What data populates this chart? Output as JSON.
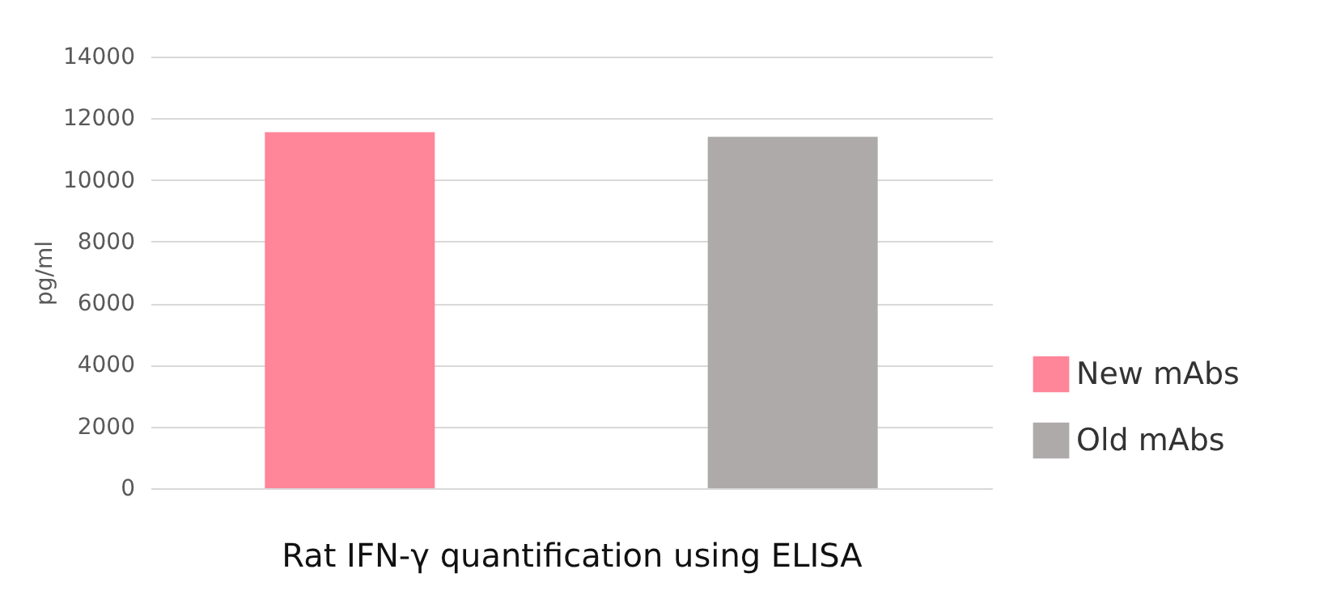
{
  "chart_data": {
    "type": "bar",
    "xlabel": "Rat IFN-γ quantification using ELISA",
    "ylabel": "pg/ml",
    "categories": [
      null
    ],
    "series": [
      {
        "name": "New mAbs",
        "color": "#ff8599",
        "values": [
          11550
        ]
      },
      {
        "name": "Old mAbs",
        "color": "#aeaaaa",
        "values": [
          11400
        ]
      }
    ],
    "ylim": [
      0,
      14000
    ],
    "yticks": [
      0,
      2000,
      4000,
      6000,
      8000,
      10000,
      12000,
      14000
    ],
    "grid": "y",
    "legend": "right"
  }
}
